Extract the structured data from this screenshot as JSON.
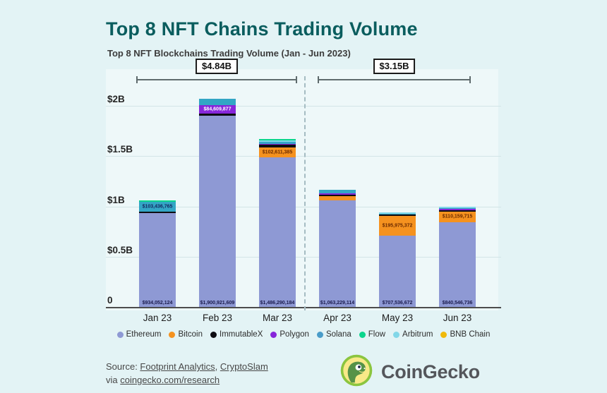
{
  "header": {
    "title": "Top 8 NFT Chains Trading Volume",
    "subtitle": "Top 8 NFT Blockchains Trading Volume (Jan - Jun 2023)"
  },
  "annotations": {
    "h1": {
      "label": "$4.84B",
      "months": "Jan 23 - Mar 23"
    },
    "h2": {
      "label": "$3.15B",
      "months": "Apr 23 - Jun 23"
    }
  },
  "chart_data": {
    "type": "bar",
    "stacked": true,
    "unit": "USD",
    "title": "Top 8 NFT Chains Trading Volume",
    "xlabel": "",
    "ylabel": "",
    "ylim": [
      0,
      2200000000
    ],
    "grid": true,
    "legend_position": "bottom",
    "yticks": [
      {
        "label": "$2B",
        "value": 2000000000
      },
      {
        "label": "$1.5B",
        "value": 1500000000
      },
      {
        "label": "$1B",
        "value": 1000000000
      },
      {
        "label": "$0.5B",
        "value": 500000000
      },
      {
        "label": "0",
        "value": 0
      }
    ],
    "categories": [
      "Jan 23",
      "Feb 23",
      "Mar 23",
      "Apr 23",
      "May 23",
      "Jun 23"
    ],
    "series_order": [
      "Ethereum",
      "Bitcoin",
      "ImmutableX",
      "Polygon",
      "Solana",
      "Flow",
      "Arbitrum",
      "BNB Chain"
    ],
    "colors": {
      "Ethereum": "#8e99d4",
      "Bitcoin": "#f5921f",
      "ImmutableX": "#0d0d12",
      "Polygon": "#8726da",
      "Solana": "#33a6c5",
      "Flow": "#0bd58c",
      "Arbitrum": "#82d7e8",
      "BNB Chain": "#f0b90b"
    },
    "label_colors": {
      "Ethereum": "#1a1a4d",
      "Solana": "#13265e",
      "Polygon": "#ffffff",
      "Bitcoin": "#6b2a00"
    },
    "bars": [
      {
        "month": "Jan 23",
        "segments": [
          {
            "chain": "Ethereum",
            "value": 934052124,
            "label": "$934,052,124"
          },
          {
            "chain": "ImmutableX",
            "value": 6000000,
            "estimated": true
          },
          {
            "chain": "Solana",
            "value": 103436765,
            "label": "$103,436,765"
          },
          {
            "chain": "Flow",
            "value": 12000000,
            "estimated": true
          }
        ]
      },
      {
        "month": "Feb 23",
        "segments": [
          {
            "chain": "Ethereum",
            "value": 1900921609,
            "label": "$1,900,921,609"
          },
          {
            "chain": "ImmutableX",
            "value": 25000000,
            "estimated": true
          },
          {
            "chain": "Polygon",
            "value": 84609877,
            "label": "$84,609,877"
          },
          {
            "chain": "Solana",
            "value": 60000000,
            "estimated": true
          }
        ]
      },
      {
        "month": "Mar 23",
        "segments": [
          {
            "chain": "Ethereum",
            "value": 1486290184,
            "label": "$1,486,290,184"
          },
          {
            "chain": "Bitcoin",
            "value": 102611385,
            "label": "$102,611,385"
          },
          {
            "chain": "ImmutableX",
            "value": 22000000,
            "estimated": true
          },
          {
            "chain": "Polygon",
            "value": 10000000,
            "estimated": true
          },
          {
            "chain": "Solana",
            "value": 22000000,
            "estimated": true
          },
          {
            "chain": "Arbitrum",
            "value": 14000000,
            "estimated": true
          },
          {
            "chain": "Flow",
            "value": 14000000,
            "estimated": true
          }
        ]
      },
      {
        "month": "Apr 23",
        "segments": [
          {
            "chain": "Ethereum",
            "value": 1063229114,
            "label": "$1,063,229,114"
          },
          {
            "chain": "Bitcoin",
            "value": 38000000,
            "estimated": true
          },
          {
            "chain": "ImmutableX",
            "value": 18000000,
            "estimated": true
          },
          {
            "chain": "Polygon",
            "value": 14000000,
            "estimated": true
          },
          {
            "chain": "Solana",
            "value": 30000000,
            "estimated": true
          }
        ]
      },
      {
        "month": "May 23",
        "segments": [
          {
            "chain": "Ethereum",
            "value": 707536672,
            "label": "$707,536,672"
          },
          {
            "chain": "Bitcoin",
            "value": 195975372,
            "label": "$195,975,372"
          },
          {
            "chain": "ImmutableX",
            "value": 14000000,
            "estimated": true
          },
          {
            "chain": "Solana",
            "value": 12000000,
            "estimated": true
          },
          {
            "chain": "Arbitrum",
            "value": 8000000,
            "estimated": true
          }
        ]
      },
      {
        "month": "Jun 23",
        "segments": [
          {
            "chain": "Ethereum",
            "value": 840546736,
            "label": "$840,546,736"
          },
          {
            "chain": "Bitcoin",
            "value": 110159715,
            "label": "$110,159,715"
          },
          {
            "chain": "ImmutableX",
            "value": 12000000,
            "estimated": true
          },
          {
            "chain": "Polygon",
            "value": 8000000,
            "estimated": true
          },
          {
            "chain": "Solana",
            "value": 10000000,
            "estimated": true
          },
          {
            "chain": "Arbitrum",
            "value": 6000000,
            "estimated": true
          }
        ]
      }
    ]
  },
  "legend": {
    "items": [
      {
        "name": "Ethereum",
        "color": "#8e99d4"
      },
      {
        "name": "Bitcoin",
        "color": "#f5921f"
      },
      {
        "name": "ImmutableX",
        "color": "#0d0d12"
      },
      {
        "name": "Polygon",
        "color": "#8726da"
      },
      {
        "name": "Solana",
        "color": "#4a9cc9"
      },
      {
        "name": "Flow",
        "color": "#0bd58c"
      },
      {
        "name": "Arbitrum",
        "color": "#82d7e8"
      },
      {
        "name": "BNB Chain",
        "color": "#f0b90b"
      }
    ]
  },
  "footer": {
    "source_prefix": "Source: ",
    "link_footprint": "Footprint Analytics",
    "separator": ", ",
    "link_cryptoslam": "CryptoSlam",
    "via_prefix": "via ",
    "link_research": "coingecko.com/research",
    "logo_text": "CoinGecko"
  }
}
